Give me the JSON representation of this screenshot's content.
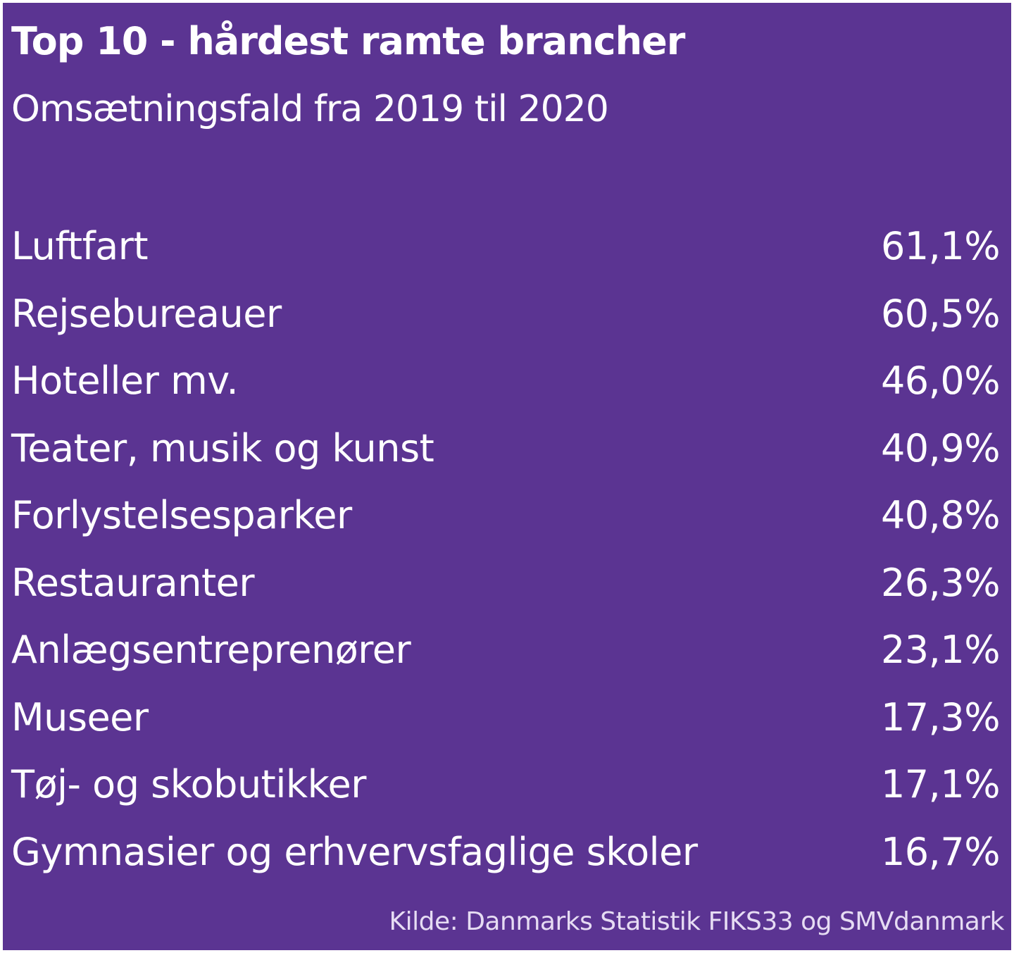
{
  "chart_data": {
    "type": "table",
    "title": "Top 10 - hårdest ramte brancher",
    "subtitle": "Omsætningsfald fra 2019 til 2020",
    "rows": [
      {
        "label": "Luftfart",
        "value": 61.1,
        "display": "61,1%"
      },
      {
        "label": "Rejsebureauer",
        "value": 60.5,
        "display": "60,5%"
      },
      {
        "label": "Hoteller mv.",
        "value": 46.0,
        "display": "46,0%"
      },
      {
        "label": "Teater, musik og kunst",
        "value": 40.9,
        "display": "40,9%"
      },
      {
        "label": "Forlystelsesparker",
        "value": 40.8,
        "display": "40,8%"
      },
      {
        "label": "Restauranter",
        "value": 26.3,
        "display": "26,3%"
      },
      {
        "label": "Anlægsentreprenører",
        "value": 23.1,
        "display": "23,1%"
      },
      {
        "label": "Museer",
        "value": 17.3,
        "display": "17,3%"
      },
      {
        "label": "Tøj- og skobutikker",
        "value": 17.1,
        "display": "17,1%"
      },
      {
        "label": "Gymnasier og erhvervsfaglige skoler",
        "value": 16.7,
        "display": "16,7%"
      }
    ],
    "source": "Kilde: Danmarks Statistik FIKS33 og SMVdanmark"
  },
  "colors": {
    "background": "#5b3492",
    "text": "#ffffff"
  }
}
